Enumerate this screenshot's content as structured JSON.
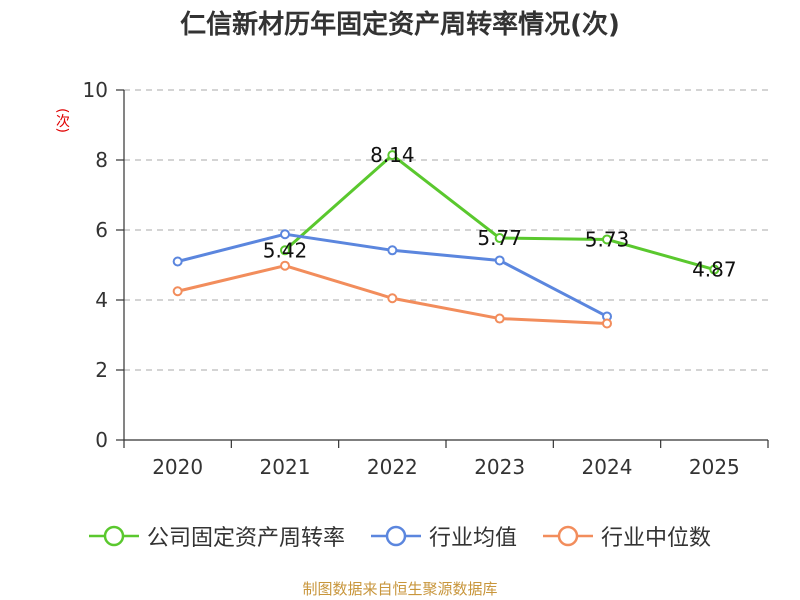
{
  "chart_data": {
    "type": "line",
    "title": "仁信新材历年固定资产周转率情况(次)",
    "ylabel": "(次)",
    "xlabel": "",
    "categories": [
      "2020",
      "2021",
      "2022",
      "2023",
      "2024",
      "2025"
    ],
    "ylim": [
      0,
      10
    ],
    "yticks": [
      0,
      2,
      4,
      6,
      8,
      10
    ],
    "grid": true,
    "legend_position": "bottom",
    "series": [
      {
        "name": "公司固定资产周转率",
        "color": "#5ac82e",
        "values": [
          null,
          5.42,
          8.14,
          5.77,
          5.73,
          4.87
        ],
        "labels": [
          "",
          "5.42",
          "8.14",
          "5.77",
          "5.73",
          "4.87"
        ]
      },
      {
        "name": "行业均值",
        "color": "#5b86de",
        "values": [
          5.1,
          5.88,
          5.42,
          5.13,
          3.53,
          null
        ]
      },
      {
        "name": "行业中位数",
        "color": "#f28d5c",
        "values": [
          4.25,
          4.98,
          4.05,
          3.47,
          3.33,
          null
        ]
      }
    ]
  },
  "source": "制图数据来自恒生聚源数据库"
}
